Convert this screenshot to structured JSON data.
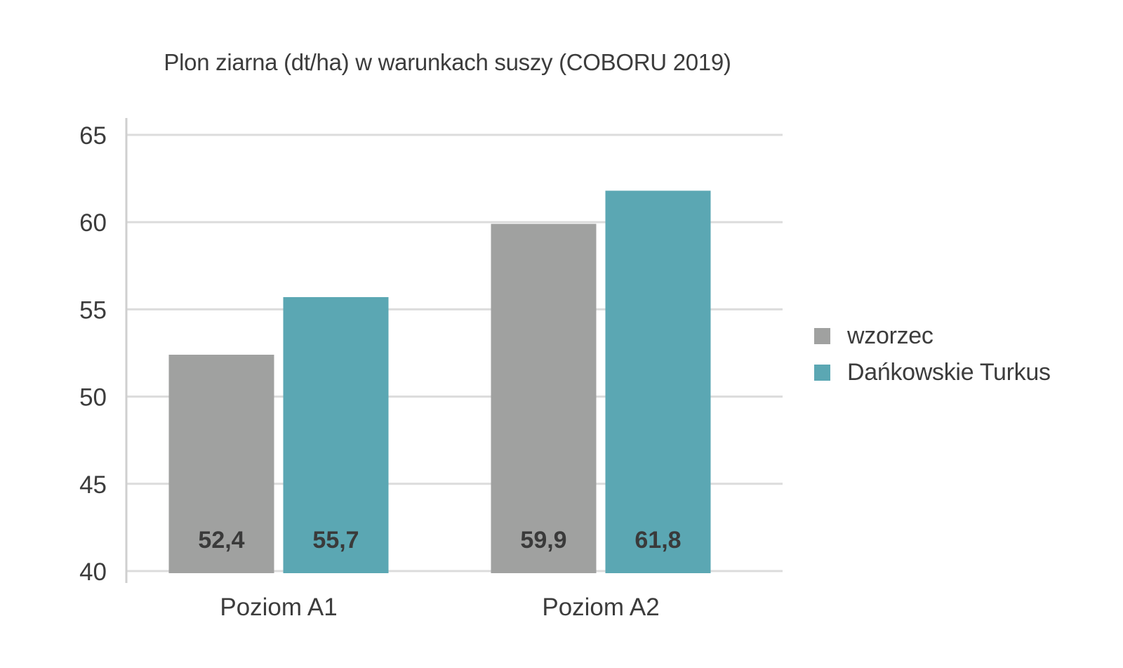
{
  "chart_data": {
    "type": "bar",
    "title": "Plon ziarna (dt/ha) w warunkach suszy (COBORU 2019)",
    "xlabel": "",
    "ylabel": "",
    "categories": [
      "Poziom A1",
      "Poziom A2"
    ],
    "series": [
      {
        "name": "wzorzec",
        "values": [
          52.4,
          59.9
        ],
        "labels": [
          "52,4",
          "59,9"
        ],
        "color": "#a0a1a0"
      },
      {
        "name": "Dańkowskie Turkus",
        "values": [
          55.7,
          61.8
        ],
        "labels": [
          "55,7",
          "61,8"
        ],
        "color": "#5ba7b3"
      }
    ],
    "ylim": [
      40,
      65
    ],
    "yticks": [
      40,
      45,
      50,
      55,
      60,
      65
    ],
    "grid": true,
    "legend_position": "right"
  }
}
